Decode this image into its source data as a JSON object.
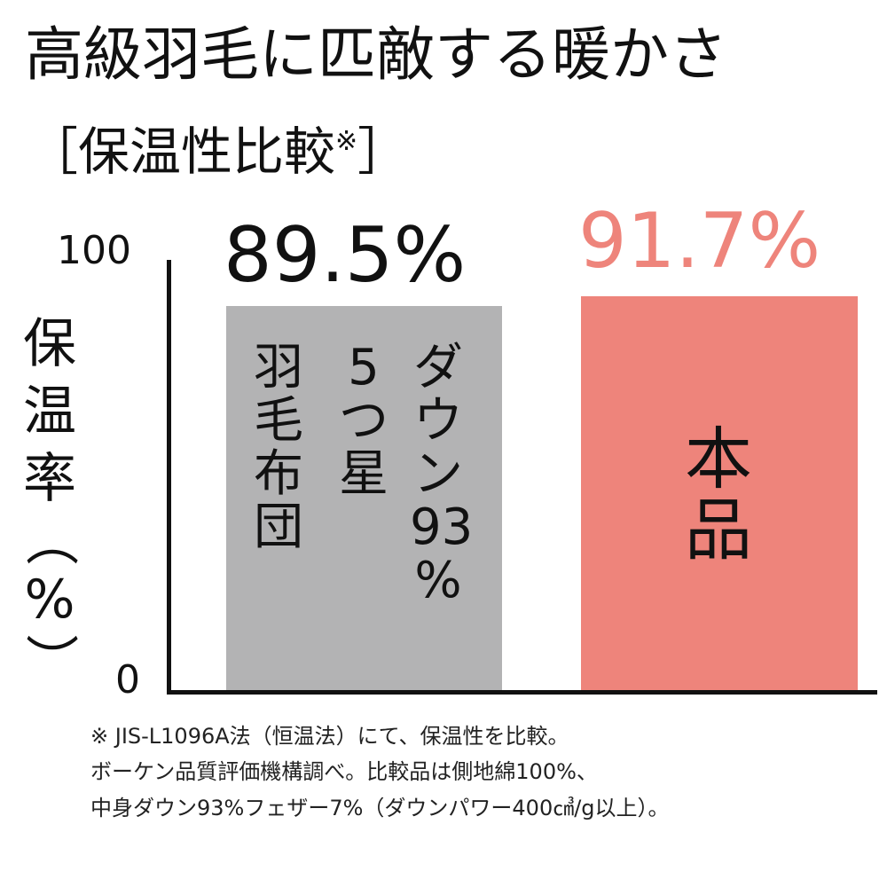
{
  "header": {
    "title": "高級羽毛に匹敵する暖かさ",
    "subtitle_open": "［保温性比較",
    "subtitle_mark": "※",
    "subtitle_close": "］"
  },
  "axis": {
    "ylabel_chars": [
      "保",
      "温",
      "率",
      "（",
      "%",
      "）"
    ],
    "tick_max": "100",
    "tick_min": "0"
  },
  "bars": [
    {
      "value_label": "89.5%",
      "color": "#b3b3b4",
      "label_color": "#111111",
      "label_columns": [
        [
          "羽",
          "毛",
          "布",
          "団"
        ],
        [
          "5",
          "つ",
          "星"
        ],
        [
          "ダ",
          "ウ",
          "ン",
          "93",
          "%"
        ]
      ]
    },
    {
      "value_label": "91.7%",
      "color": "#ee847b",
      "label_color": "#ee847b",
      "label_chars": [
        "本",
        "品"
      ]
    }
  ],
  "notes": [
    "※ JIS-L1096A法（恒温法）にて、保温性を比較。",
    "ボーケン品質評価機構調べ。比較品は側地綿100%、",
    "中身ダウン93%フェザー7%（ダウンパワー400㎤/g以上）。"
  ],
  "chart_data": {
    "type": "bar",
    "title": "高級羽毛に匹敵する暖かさ",
    "subtitle": "［保温性比較※］",
    "categories": [
      "羽毛布団 5つ星 ダウン93%",
      "本品"
    ],
    "values": [
      89.5,
      91.7
    ],
    "value_labels": [
      "89.5%",
      "91.7%"
    ],
    "colors": [
      "#b3b3b4",
      "#ee847b"
    ],
    "xlabel": "",
    "ylabel": "保温率（%）",
    "ylim": [
      0,
      100
    ],
    "yticks": [
      0,
      100
    ],
    "grid": false,
    "legend": null,
    "annotations": [
      "※ JIS-L1096A法（恒温法）にて、保温性を比較。",
      "ボーケン品質評価機構調べ。比較品は側地綿100%、",
      "中身ダウン93%フェザー7%（ダウンパワー400㎤/g以上）。"
    ]
  }
}
